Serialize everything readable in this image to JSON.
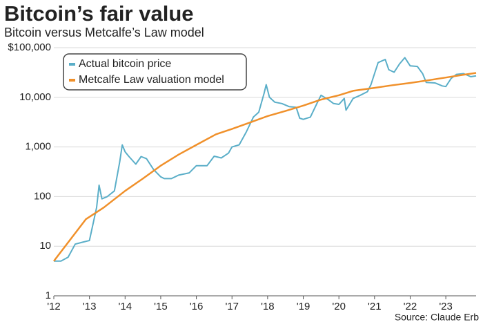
{
  "chart_data": {
    "type": "line",
    "title": "Bitcoin’s fair value",
    "subtitle": "Bitcoin versus Metcalfe’s Law model",
    "source": "Source: Claude Erb",
    "log_y": true,
    "grid": true,
    "legend": "top-left",
    "xlim": [
      2012,
      2023.85
    ],
    "xticks": [
      {
        "value": 2012,
        "label": "'12"
      },
      {
        "value": 2013,
        "label": "'13"
      },
      {
        "value": 2014,
        "label": "'14"
      },
      {
        "value": 2015,
        "label": "'15"
      },
      {
        "value": 2016,
        "label": "'16"
      },
      {
        "value": 2017,
        "label": "'17"
      },
      {
        "value": 2018,
        "label": "'18"
      },
      {
        "value": 2019,
        "label": "'19"
      },
      {
        "value": 2020,
        "label": "'20"
      },
      {
        "value": 2021,
        "label": "'21"
      },
      {
        "value": 2022,
        "label": "'22"
      },
      {
        "value": 2023,
        "label": "'23"
      }
    ],
    "ylim": [
      1,
      100000
    ],
    "yticks": [
      {
        "value": 100000,
        "label": "$100,000"
      },
      {
        "value": 10000,
        "label": "10,000"
      },
      {
        "value": 1000,
        "label": "1,000"
      },
      100,
      10,
      1
    ],
    "series": [
      {
        "name": "Actual bitcoin price",
        "color": "#5aaec8",
        "x": [
          2012.0,
          2012.2,
          2012.4,
          2012.6,
          2012.8,
          2013.0,
          2013.2,
          2013.27,
          2013.35,
          2013.5,
          2013.7,
          2013.85,
          2013.92,
          2014.0,
          2014.1,
          2014.3,
          2014.45,
          2014.6,
          2014.8,
          2015.0,
          2015.1,
          2015.3,
          2015.5,
          2015.8,
          2016.0,
          2016.3,
          2016.5,
          2016.7,
          2016.9,
          2017.0,
          2017.2,
          2017.4,
          2017.6,
          2017.75,
          2017.9,
          2017.96,
          2018.05,
          2018.2,
          2018.4,
          2018.6,
          2018.8,
          2018.9,
          2019.0,
          2019.2,
          2019.4,
          2019.5,
          2019.7,
          2019.85,
          2020.0,
          2020.15,
          2020.2,
          2020.4,
          2020.6,
          2020.8,
          2020.9,
          2021.0,
          2021.1,
          2021.3,
          2021.4,
          2021.55,
          2021.7,
          2021.85,
          2022.0,
          2022.2,
          2022.35,
          2022.45,
          2022.7,
          2022.9,
          2023.0,
          2023.15,
          2023.3,
          2023.5,
          2023.7,
          2023.85
        ],
        "values": [
          5,
          5,
          6,
          11,
          12,
          13,
          60,
          170,
          90,
          100,
          130,
          500,
          1100,
          800,
          650,
          450,
          640,
          580,
          350,
          250,
          230,
          230,
          270,
          300,
          420,
          420,
          650,
          600,
          750,
          1000,
          1100,
          2000,
          4000,
          5000,
          12000,
          18000,
          10000,
          8000,
          7500,
          6500,
          6300,
          3800,
          3600,
          4000,
          8000,
          11000,
          9000,
          7500,
          7200,
          9500,
          5500,
          9500,
          11000,
          13000,
          18000,
          30000,
          50000,
          58000,
          36000,
          32000,
          47000,
          63000,
          43000,
          42000,
          30000,
          20000,
          19500,
          17000,
          16500,
          24000,
          29000,
          30000,
          26000,
          27000
        ]
      },
      {
        "name": "Metcalfe Law valuation model",
        "color": "#f0902a",
        "x": [
          2012.0,
          2012.9,
          2013.4,
          2014.0,
          2014.5,
          2015.0,
          2015.5,
          2016.0,
          2016.55,
          2017.0,
          2017.5,
          2018.0,
          2018.5,
          2019.0,
          2019.5,
          2020.0,
          2020.4,
          2021.0,
          2021.5,
          2022.0,
          2022.5,
          2023.0,
          2023.5,
          2023.85
        ],
        "values": [
          5,
          35,
          60,
          130,
          230,
          420,
          700,
          1100,
          1800,
          2300,
          3100,
          4200,
          5300,
          6800,
          9000,
          11000,
          13500,
          15500,
          17500,
          19500,
          22000,
          25000,
          28500,
          31000
        ]
      }
    ]
  }
}
